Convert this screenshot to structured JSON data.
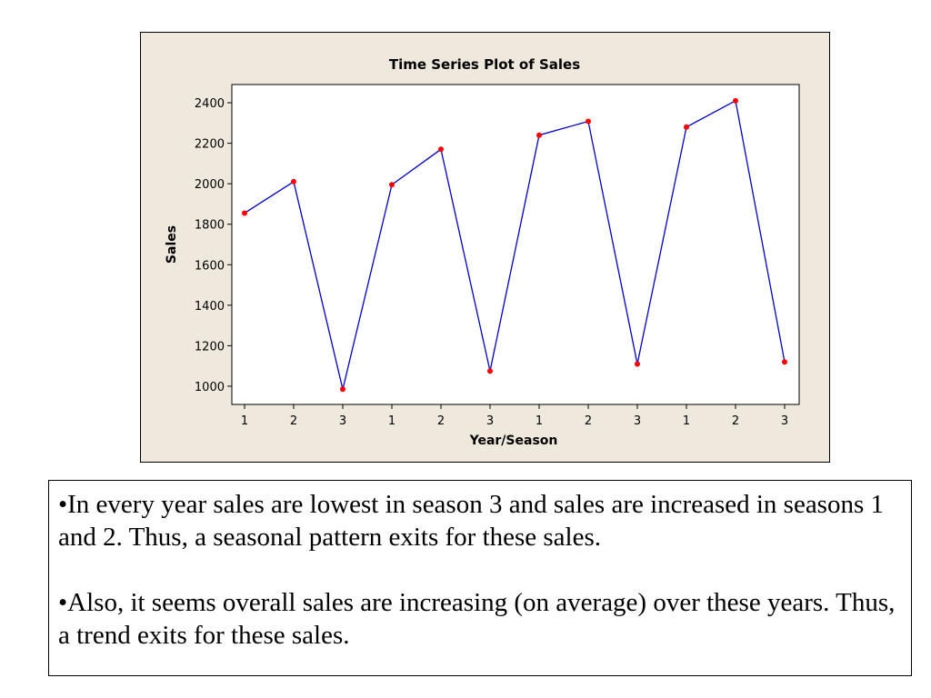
{
  "chart_data": {
    "type": "line",
    "title": "Time Series Plot of Sales",
    "xlabel": "Year/Season",
    "ylabel": "Sales",
    "categories": [
      "1",
      "2",
      "3",
      "1",
      "2",
      "3",
      "1",
      "2",
      "3",
      "1",
      "2",
      "3"
    ],
    "series": [
      {
        "values": [
          1855,
          2010,
          985,
          1995,
          2170,
          1075,
          2240,
          2308,
          1110,
          2280,
          2410,
          1120
        ],
        "line_color": "#0000cc",
        "marker_color": "#ff0000"
      }
    ],
    "ylim": [
      910,
      2490
    ],
    "yticks": [
      1000,
      1200,
      1400,
      1600,
      1800,
      2000,
      2200,
      2400
    ],
    "grid": false,
    "legend": "none",
    "frame_background": "#efe9dd",
    "plot_background": "#ffffff"
  },
  "notes": {
    "point1": "•In every year sales are lowest in season 3 and sales are increased in seasons 1 and 2. Thus, a seasonal pattern exits for these sales.",
    "point2": "•Also, it seems overall sales are increasing (on average) over these years. Thus, a trend exits for these sales."
  }
}
